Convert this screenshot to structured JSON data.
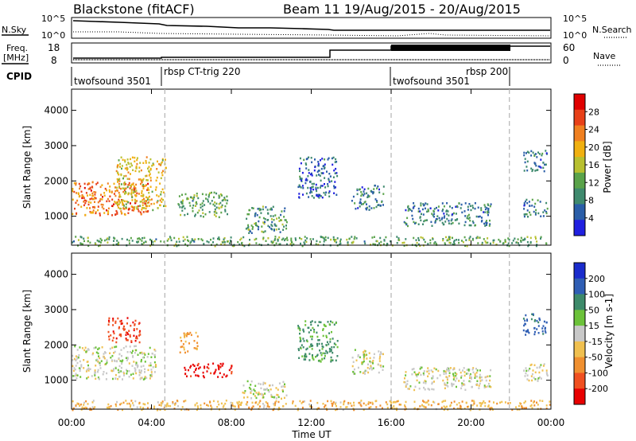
{
  "header": {
    "station": "Blackstone (fitACF)",
    "beam_info": "Beam 11  19/Aug/2015 - 20/Aug/2015"
  },
  "top_panels": {
    "nsky_label": "N.Sky",
    "nsearch_label": "N.Search",
    "nsky_ticks": [
      "10^5",
      "10^0"
    ],
    "nsearch_ticks": [
      "10^5",
      "10^0"
    ],
    "freq_label_1": "Freq.",
    "freq_label_2": "[MHz]",
    "freq_ticks": [
      "18",
      "8"
    ],
    "nave_label": "Nave",
    "nave_ticks": [
      "60",
      "0"
    ],
    "cpid_label": "CPID",
    "cpid_segments": [
      {
        "label": "twofsound 3501",
        "start_h": 0,
        "end_h": 4.67
      },
      {
        "label": "rbsp CT-trig 220",
        "start_h": 4.67,
        "end_h": 16.0
      },
      {
        "label": "twofsound 3501",
        "start_h": 16.0,
        "end_h": 21.92
      },
      {
        "label": "rbsp 200",
        "start_h": 21.92,
        "end_h": 24.0
      }
    ]
  },
  "colors": {
    "power": [
      "#2020e0",
      "#2a5ea8",
      "#3f8a6e",
      "#5aa34a",
      "#b8c030",
      "#f0b010",
      "#f08020",
      "#e84018",
      "#e00000"
    ],
    "velocity": [
      "#1a2ccc",
      "#2f5eb4",
      "#3d8a6a",
      "#6cc23a",
      "#c8c8c8",
      "#f0c050",
      "#f09030",
      "#f05020",
      "#e80000"
    ],
    "dash": "#b4b4b4"
  },
  "chart_data": [
    {
      "type": "heatmap",
      "title": "Power",
      "xlabel": "Time UT",
      "ylabel": "Slant Range [km]",
      "x_range_h": [
        0,
        24
      ],
      "x_ticks": [
        "00:00",
        "04:00",
        "08:00",
        "12:00",
        "16:00",
        "20:00",
        "00:00"
      ],
      "ylim": [
        180,
        4600
      ],
      "y_ticks": [
        1000,
        2000,
        3000,
        4000
      ],
      "colorbar_label": "Power [dB]",
      "colorbar_ticks": [
        "4",
        "8",
        "12",
        "16",
        "20",
        "24",
        "28"
      ],
      "colorbar_range": [
        0,
        32
      ],
      "echo_regions": [
        {
          "t": [
            0.0,
            3.8
          ],
          "r": [
            1050,
            2000
          ],
          "v": 24
        },
        {
          "t": [
            2.2,
            4.7
          ],
          "r": [
            1200,
            2700
          ],
          "v": 18
        },
        {
          "t": [
            5.3,
            7.8
          ],
          "r": [
            1000,
            1700
          ],
          "v": 12
        },
        {
          "t": [
            8.7,
            10.8
          ],
          "r": [
            550,
            1300
          ],
          "v": 10
        },
        {
          "t": [
            11.3,
            13.3
          ],
          "r": [
            1550,
            2700
          ],
          "v": 6
        },
        {
          "t": [
            14.0,
            15.6
          ],
          "r": [
            1200,
            1900
          ],
          "v": 8
        },
        {
          "t": [
            16.6,
            21.0
          ],
          "r": [
            750,
            1400
          ],
          "v": 8
        },
        {
          "t": [
            22.6,
            23.8
          ],
          "r": [
            1000,
            1500
          ],
          "v": 8
        },
        {
          "t": [
            22.6,
            23.8
          ],
          "r": [
            2300,
            2900
          ],
          "v": 6
        },
        {
          "t": [
            0.0,
            24.0
          ],
          "r": [
            180,
            450
          ],
          "v": 12
        }
      ]
    },
    {
      "type": "heatmap",
      "title": "Velocity",
      "xlabel": "Time UT",
      "ylabel": "Slant Range [km]",
      "x_range_h": [
        0,
        24
      ],
      "x_ticks": [
        "00:00",
        "04:00",
        "08:00",
        "12:00",
        "16:00",
        "20:00",
        "00:00"
      ],
      "ylim": [
        180,
        4600
      ],
      "y_ticks": [
        1000,
        2000,
        3000,
        4000
      ],
      "colorbar_label": "Velocity [m s-1]",
      "colorbar_ticks": [
        "200",
        "100",
        "50",
        "15",
        "-15",
        "-50",
        "-100",
        "-200"
      ],
      "colorbar_range": [
        -250,
        250
      ],
      "echo_regions": [
        {
          "t": [
            0.0,
            4.2
          ],
          "r": [
            1050,
            2000
          ],
          "v": 0
        },
        {
          "t": [
            1.8,
            3.4
          ],
          "r": [
            2100,
            2800
          ],
          "v": -180
        },
        {
          "t": [
            5.4,
            6.3
          ],
          "r": [
            1800,
            2400
          ],
          "v": -60
        },
        {
          "t": [
            5.6,
            8.0
          ],
          "r": [
            1100,
            1500
          ],
          "v": -220
        },
        {
          "t": [
            8.5,
            10.8
          ],
          "r": [
            500,
            1000
          ],
          "v": 0
        },
        {
          "t": [
            11.3,
            13.3
          ],
          "r": [
            1550,
            2700
          ],
          "v": 60
        },
        {
          "t": [
            14.0,
            15.6
          ],
          "r": [
            1200,
            1900
          ],
          "v": 0
        },
        {
          "t": [
            16.6,
            21.0
          ],
          "r": [
            750,
            1400
          ],
          "v": 0
        },
        {
          "t": [
            22.6,
            23.8
          ],
          "r": [
            1000,
            1500
          ],
          "v": 0
        },
        {
          "t": [
            22.6,
            23.8
          ],
          "r": [
            2300,
            2900
          ],
          "v": 120
        },
        {
          "t": [
            0.0,
            24.0
          ],
          "r": [
            180,
            450
          ],
          "v": -40
        }
      ]
    }
  ]
}
